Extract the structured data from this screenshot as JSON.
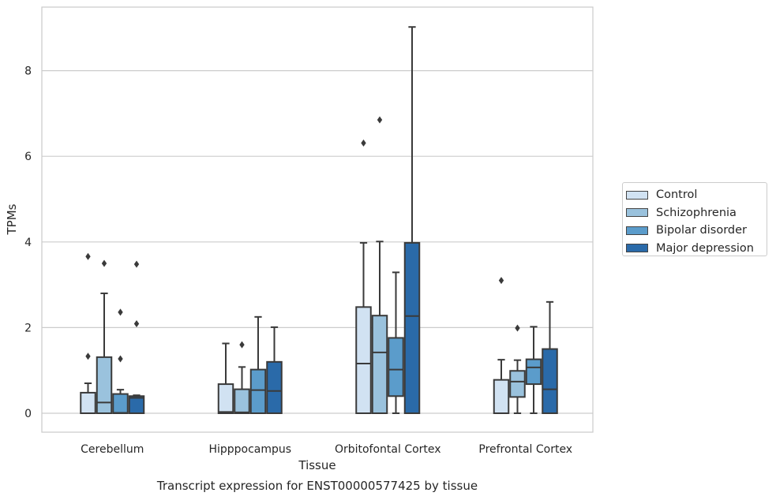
{
  "chart_data": {
    "type": "boxplot",
    "title": "Transcript expression for ENST00000577425 by tissue",
    "xlabel": "Tissue",
    "ylabel": "TPMs",
    "ylim": [
      -0.45,
      9.3
    ],
    "yticks": [
      0,
      2,
      4,
      6,
      8
    ],
    "grid": "horizontal",
    "legend_position": "right",
    "categories": [
      "Cerebellum",
      "Hipppocampus",
      "Orbitofontal Cortex",
      "Prefrontal Cortex"
    ],
    "series": [
      {
        "name": "Control",
        "color": "#d1e2f2",
        "boxes": [
          {
            "whislo": 0,
            "q1": 0,
            "med": 0,
            "q3": 0.48,
            "whishi": 0.7,
            "fliers": [
              1.33,
              3.66
            ]
          },
          {
            "whislo": 0,
            "q1": 0,
            "med": 0.03,
            "q3": 0.68,
            "whishi": 1.63,
            "fliers": []
          },
          {
            "whislo": 0,
            "q1": 0,
            "med": 1.16,
            "q3": 2.48,
            "whishi": 3.98,
            "fliers": [
              6.31
            ]
          },
          {
            "whislo": 0,
            "q1": 0,
            "med": 0,
            "q3": 0.78,
            "whishi": 1.25,
            "fliers": [
              3.1
            ]
          }
        ]
      },
      {
        "name": "Schizophrenia",
        "color": "#9ac2dd",
        "boxes": [
          {
            "whislo": 0,
            "q1": 0,
            "med": 0.25,
            "q3": 1.31,
            "whishi": 2.8,
            "fliers": [
              3.5
            ]
          },
          {
            "whislo": 0,
            "q1": 0,
            "med": 0.02,
            "q3": 0.56,
            "whishi": 1.08,
            "fliers": [
              1.6
            ]
          },
          {
            "whislo": 0,
            "q1": 0,
            "med": 1.42,
            "q3": 2.28,
            "whishi": 4.01,
            "fliers": [
              6.85
            ]
          },
          {
            "whislo": 0,
            "q1": 0.38,
            "med": 0.74,
            "q3": 0.99,
            "whishi": 1.24,
            "fliers": [
              1.99
            ]
          }
        ]
      },
      {
        "name": "Bipolar disorder",
        "color": "#5b9ccb",
        "boxes": [
          {
            "whislo": 0,
            "q1": 0,
            "med": 0.01,
            "q3": 0.45,
            "whishi": 0.55,
            "fliers": [
              1.27,
              2.36
            ]
          },
          {
            "whislo": 0,
            "q1": 0,
            "med": 0.54,
            "q3": 1.02,
            "whishi": 2.25,
            "fliers": []
          },
          {
            "whislo": 0,
            "q1": 0.4,
            "med": 1.02,
            "q3": 1.76,
            "whishi": 3.29,
            "fliers": []
          },
          {
            "whislo": 0,
            "q1": 0.68,
            "med": 1.07,
            "q3": 1.26,
            "whishi": 2.02,
            "fliers": []
          }
        ]
      },
      {
        "name": "Major depression",
        "color": "#2a6aa9",
        "boxes": [
          {
            "whislo": 0,
            "q1": 0,
            "med": 0.36,
            "q3": 0.4,
            "whishi": 0.42,
            "fliers": [
              2.09,
              3.48
            ]
          },
          {
            "whislo": 0,
            "q1": 0,
            "med": 0.52,
            "q3": 1.2,
            "whishi": 2.01,
            "fliers": []
          },
          {
            "whislo": 0,
            "q1": 0,
            "med": 2.27,
            "q3": 3.98,
            "whishi": 9.02,
            "fliers": []
          },
          {
            "whislo": 0,
            "q1": 0,
            "med": 0.56,
            "q3": 1.5,
            "whishi": 2.6,
            "fliers": []
          }
        ]
      }
    ]
  }
}
